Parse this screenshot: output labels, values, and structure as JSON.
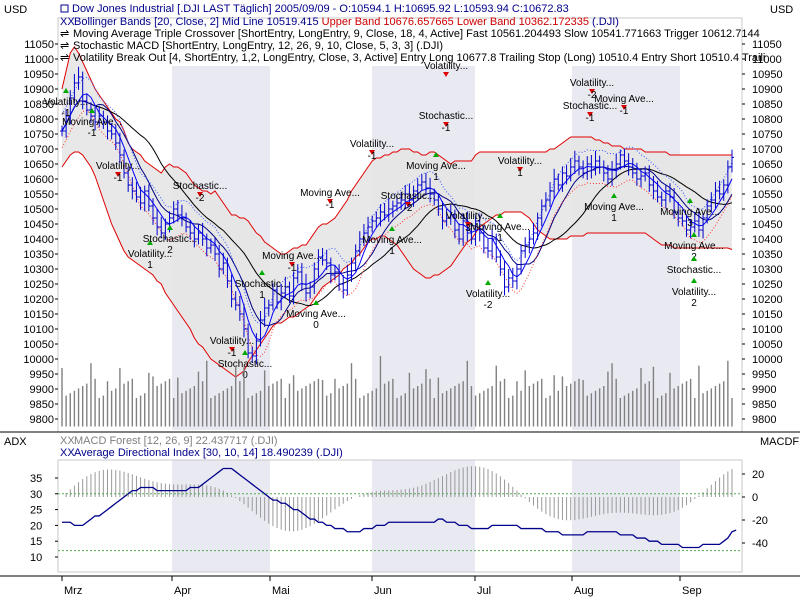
{
  "colors": {
    "background": "#ffffff",
    "band_fill": "#e6e6e6",
    "shade": "#e9e9f2",
    "upper_lower_band": "#e00000",
    "price_bars": "#0000cc",
    "sma": "#000000",
    "fast_ma": "#0000ff",
    "dotted_blue": "#3355ff",
    "dotted_red": "#ff3333",
    "volume": "#808080",
    "adx_line": "#00008b",
    "macd_forest": "#999999",
    "level_dots": "#55aa55",
    "buy_arrow": "#00aa00",
    "sell_arrow": "#dd0000"
  },
  "axis_units": {
    "left": "USD",
    "right": "USD"
  },
  "legend": [
    {
      "icon": "square-icon",
      "text": "Dow Jones Industrial [.DJI LAST Täglich] 2005/09/09 - O:10594.1 H:10695.92 L:10593.94 C:10672.83",
      "color": "#00008b"
    },
    {
      "icon": "bollinger-icon",
      "text": "Bollinger Bands [20, Close, 2] Mid Line 10519.415 ",
      "highlight": "Upper Band 10676.657665 Lower Band 10362.172335",
      "tail": " (.DJI)",
      "color": "#00008b",
      "highlight_color": "#cc0000"
    },
    {
      "icon": "crossover-icon",
      "text": "Moving Average Triple Crossover [ShortEntry, LongEntry, 9, Close, 18, 4, Active] Fast 10561.204493 Slow 10541.771663 Trigger 10612.7144",
      "color": "#000000"
    },
    {
      "icon": "crossover-icon",
      "text": "Stochastic MACD [ShortEntry, LongEntry, 12, 26, 9, 10, Close, 5, 3, 3] (.DJI)",
      "color": "#000000"
    },
    {
      "icon": "crossover-icon",
      "text": "Volatility Break Out [4, ShortEntry, 1,2, LongEntry, Close, 3, Active] Entry Long 10677.8 Trailing Stop (Long) 10510.4 Entry Short 10510.4 Traili",
      "color": "#000000"
    }
  ],
  "lower_legend": [
    {
      "icon": "macd-icon",
      "text": "MACD Forest [12, 26, 9] 22.437717 (.DJI)",
      "color": "#808080"
    },
    {
      "icon": "adx-icon",
      "text": "Average Directional Index [30, 10, 14] 18.490239 (.DJI)",
      "color": "#00008b"
    }
  ],
  "lower_labels": {
    "left": "ADX",
    "right": "MACDF"
  },
  "chart_data": {
    "type": "ohlc",
    "title": "Dow Jones Industrial [.DJI LAST Täglich]",
    "price_ticks": [
      9800,
      9850,
      9900,
      9950,
      10000,
      10050,
      10100,
      10150,
      10200,
      10250,
      10300,
      10350,
      10400,
      10450,
      10500,
      10550,
      10600,
      10650,
      10700,
      10750,
      10800,
      10850,
      10900,
      10950,
      11000,
      11050
    ],
    "price_range": [
      9770,
      11075
    ],
    "months": [
      "Mrz",
      "Apr",
      "Mai",
      "Jun",
      "Jul",
      "Aug",
      "Sep"
    ],
    "closes": [
      10760,
      10810,
      10870,
      10920,
      10940,
      10860,
      10830,
      10810,
      10790,
      10810,
      10790,
      10760,
      10750,
      10720,
      10680,
      10620,
      10580,
      10560,
      10540,
      10520,
      10560,
      10510,
      10470,
      10440,
      10420,
      10450,
      10470,
      10500,
      10480,
      10470,
      10440,
      10420,
      10400,
      10420,
      10400,
      10370,
      10380,
      10350,
      10300,
      10320,
      10260,
      10200,
      10180,
      10150,
      10100,
      10020,
      10010,
      10060,
      10130,
      10170,
      10180,
      10230,
      10190,
      10220,
      10240,
      10210,
      10270,
      10290,
      10250,
      10220,
      10240,
      10300,
      10340,
      10330,
      10320,
      10280,
      10290,
      10250,
      10230,
      10280,
      10320,
      10360,
      10400,
      10420,
      10440,
      10460,
      10470,
      10490,
      10480,
      10500,
      10510,
      10520,
      10530,
      10550,
      10530,
      10560,
      10580,
      10590,
      10570,
      10550,
      10530,
      10500,
      10460,
      10470,
      10480,
      10430,
      10400,
      10460,
      10420,
      10400,
      10460,
      10420,
      10370,
      10360,
      10400,
      10340,
      10300,
      10240,
      10270,
      10260,
      10300,
      10360,
      10380,
      10400,
      10420,
      10470,
      10510,
      10530,
      10560,
      10600,
      10580,
      10620,
      10610,
      10640,
      10660,
      10640,
      10620,
      10650,
      10630,
      10660,
      10640,
      10620,
      10600,
      10630,
      10650,
      10680,
      10660,
      10640,
      10620,
      10600,
      10610,
      10620,
      10580,
      10560,
      10540,
      10530,
      10560,
      10540,
      10490,
      10470,
      10460,
      10430,
      10440,
      10460,
      10430,
      10470,
      10510,
      10530,
      10560,
      10550,
      10580,
      10640,
      10672
    ],
    "bollinger_upper": [
      10900,
      10960,
      11020,
      11040,
      11020,
      10990,
      10960,
      10930,
      10900,
      10880,
      10860,
      10840,
      10820,
      10800,
      10790,
      10760,
      10720,
      10700,
      10690,
      10680,
      10660,
      10650,
      10640,
      10630,
      10620,
      10640,
      10650,
      10640,
      10640,
      10630,
      10620,
      10600,
      10580,
      10570,
      10560,
      10560,
      10550,
      10560,
      10540,
      10520,
      10500,
      10480,
      10480,
      10470,
      10470,
      10460,
      10440,
      10420,
      10410,
      10390,
      10380,
      10370,
      10360,
      10350,
      10350,
      10360,
      10370,
      10370,
      10380,
      10380,
      10400,
      10420,
      10440,
      10450,
      10450,
      10460,
      10470,
      10490,
      10510,
      10530,
      10560,
      10580,
      10600,
      10620,
      10640,
      10660,
      10670,
      10670,
      10680,
      10680,
      10690,
      10690,
      10700,
      10700,
      10700,
      10690,
      10690,
      10680,
      10680,
      10690,
      10690,
      10680,
      10670,
      10660,
      10650,
      10660,
      10660,
      10660,
      10660,
      10660,
      10680,
      10690,
      10690,
      10690,
      10690,
      10690,
      10690,
      10690,
      10690,
      10690,
      10690,
      10690,
      10690,
      10690,
      10690,
      10690,
      10690,
      10690,
      10700,
      10700,
      10710,
      10720,
      10730,
      10740,
      10740,
      10740,
      10740,
      10740,
      10740,
      10730,
      10730,
      10720,
      10720,
      10710,
      10710,
      10710,
      10700,
      10700,
      10700,
      10700,
      10700,
      10690,
      10690,
      10690,
      10690,
      10690,
      10690,
      10680,
      10680,
      10680,
      10680,
      10680,
      10680,
      10680,
      10680,
      10680,
      10680,
      10680,
      10680,
      10680,
      10680,
      10680,
      10680
    ],
    "bollinger_lower": [
      10640,
      10660,
      10680,
      10690,
      10690,
      10680,
      10660,
      10640,
      10610,
      10570,
      10530,
      10490,
      10450,
      10420,
      10390,
      10360,
      10340,
      10330,
      10320,
      10310,
      10300,
      10290,
      10280,
      10260,
      10250,
      10220,
      10200,
      10180,
      10160,
      10140,
      10120,
      10100,
      10070,
      10050,
      10040,
      10020,
      10000,
      9990,
      9980,
      9970,
      9960,
      9950,
      9940,
      9950,
      9960,
      9990,
      10010,
      10030,
      10050,
      10070,
      10090,
      10110,
      10120,
      10120,
      10130,
      10140,
      10140,
      10150,
      10160,
      10170,
      10180,
      10200,
      10220,
      10240,
      10250,
      10260,
      10270,
      10280,
      10300,
      10310,
      10320,
      10340,
      10350,
      10370,
      10390,
      10400,
      10400,
      10410,
      10410,
      10400,
      10390,
      10380,
      10360,
      10340,
      10320,
      10300,
      10290,
      10280,
      10270,
      10270,
      10280,
      10280,
      10290,
      10300,
      10310,
      10330,
      10350,
      10370,
      10390,
      10400,
      10420,
      10440,
      10450,
      10460,
      10470,
      10480,
      10480,
      10490,
      10490,
      10490,
      10490,
      10490,
      10480,
      10470,
      10450,
      10430,
      10420,
      10410,
      10400,
      10400,
      10400,
      10400,
      10400,
      10410,
      10410,
      10410,
      10410,
      10420,
      10420,
      10420,
      10420,
      10420,
      10420,
      10420,
      10420,
      10420,
      10420,
      10420,
      10420,
      10420,
      10420,
      10420,
      10410,
      10400,
      10390,
      10380,
      10380,
      10380,
      10370,
      10370,
      10370,
      10370,
      10370,
      10370,
      10370,
      10370,
      10370,
      10370,
      10370,
      10370,
      10370,
      10370,
      10365
    ],
    "volume_range": [
      9775,
      10050
    ],
    "volume_ticks": [
      9800,
      9850,
      9900,
      9950,
      10000
    ],
    "adx_ticks": [
      10,
      15,
      20,
      25,
      30,
      35
    ],
    "adx_range": [
      7,
      40
    ],
    "adx": [
      21,
      21,
      21,
      20,
      20,
      20,
      21,
      22,
      23,
      23,
      24,
      25,
      26,
      27,
      28,
      29,
      30,
      31,
      31,
      32,
      32,
      32,
      32,
      31,
      31,
      31,
      31,
      31,
      31,
      31,
      31,
      32,
      32,
      32,
      33,
      34,
      35,
      36,
      37,
      38,
      38,
      38,
      37,
      36,
      35,
      34,
      33,
      32,
      31,
      30,
      29,
      28,
      28,
      27,
      27,
      26,
      25,
      25,
      24,
      23,
      22,
      22,
      21,
      21,
      20,
      20,
      19,
      19,
      19,
      18,
      18,
      18,
      18,
      19,
      19,
      19,
      20,
      20,
      20,
      21,
      21,
      21,
      21,
      21,
      21,
      21,
      21,
      21,
      21,
      21,
      21,
      22,
      22,
      21,
      21,
      21,
      20,
      20,
      20,
      19,
      19,
      19,
      19,
      19,
      20,
      20,
      20,
      20,
      20,
      20,
      20,
      19,
      19,
      19,
      19,
      19,
      19,
      18,
      18,
      18,
      18,
      17,
      17,
      17,
      17,
      17,
      17,
      18,
      18,
      18,
      18,
      18,
      18,
      18,
      18,
      17,
      17,
      17,
      17,
      16,
      16,
      16,
      15,
      15,
      15,
      14,
      14,
      14,
      14,
      14,
      13,
      13,
      13,
      13,
      13,
      14,
      14,
      14,
      14,
      14,
      15,
      16,
      18,
      18.5
    ],
    "macd_ticks": [
      20,
      0,
      -20,
      -40
    ],
    "macd_range": [
      -52,
      28
    ],
    "level_lines": [
      12,
      30
    ]
  }
}
